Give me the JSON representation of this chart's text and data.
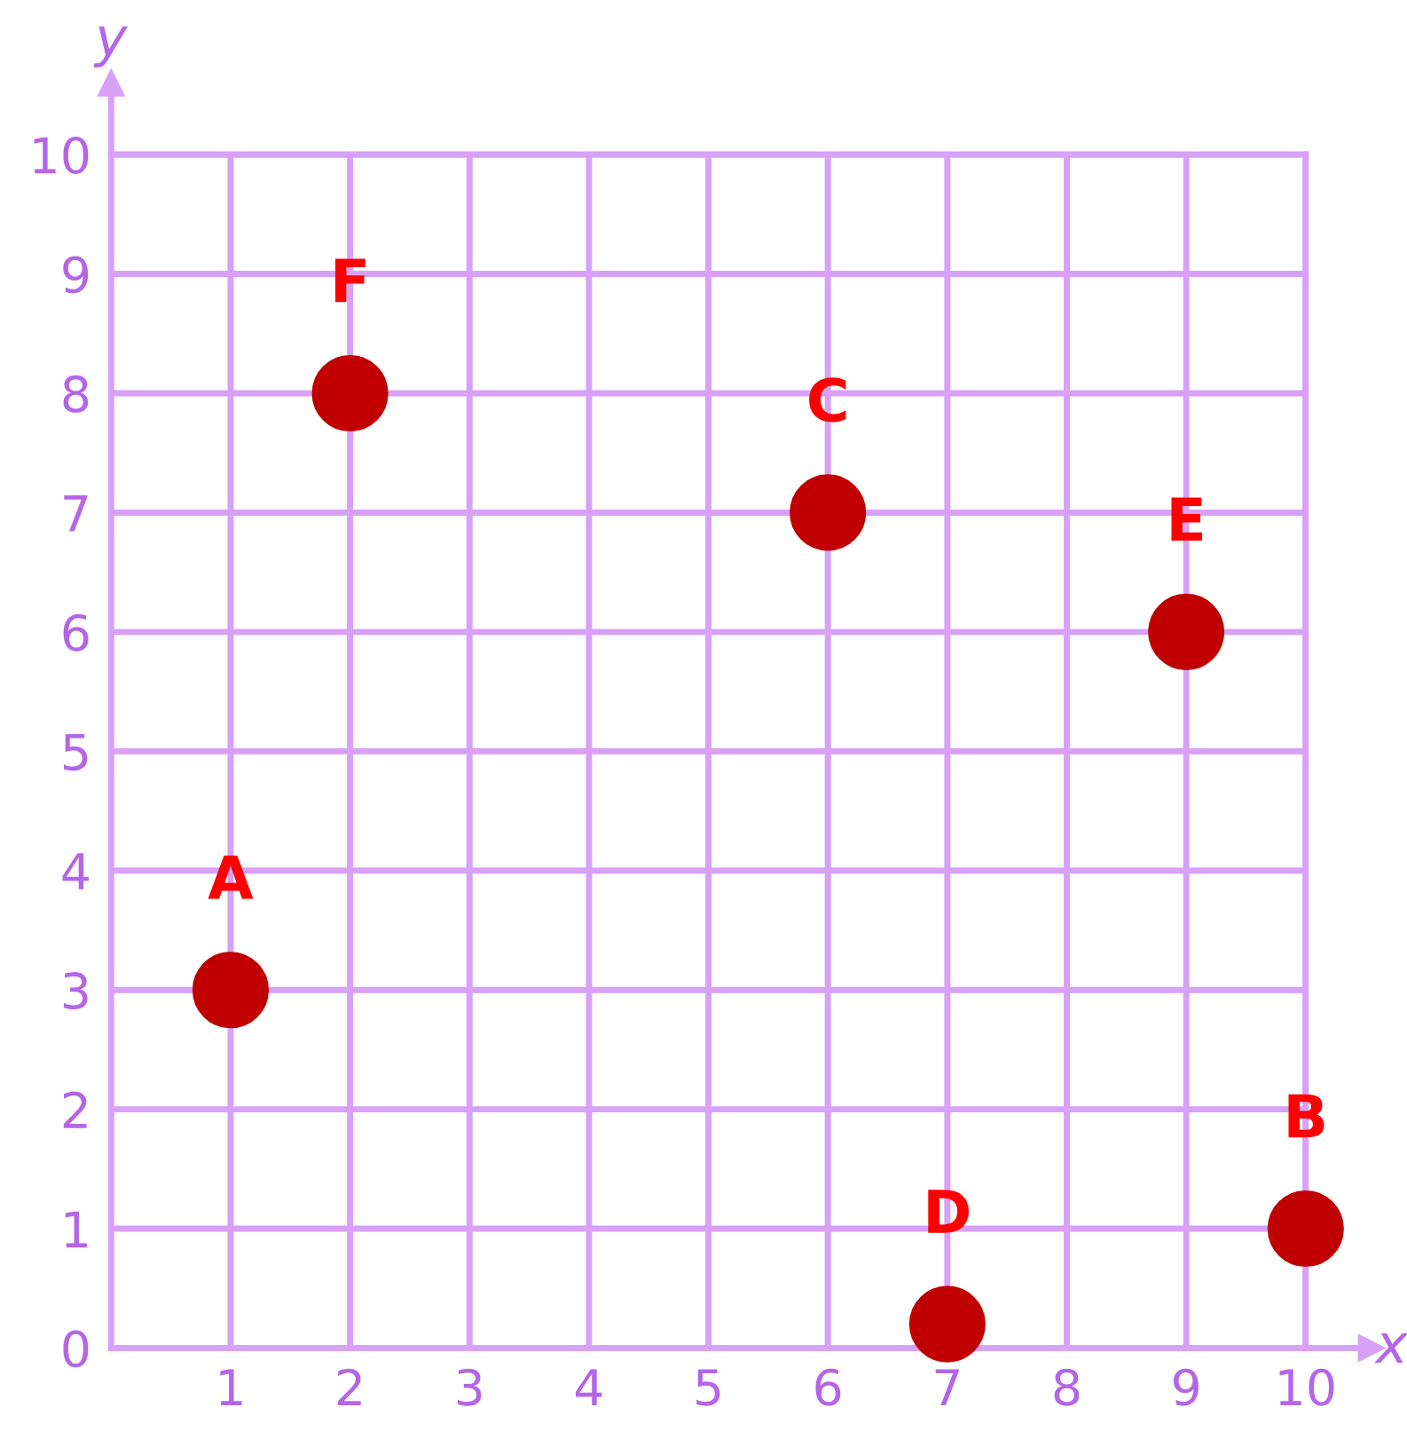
{
  "chart_data": {
    "type": "scatter",
    "xlabel": "x",
    "ylabel": "y",
    "series": [
      {
        "color": "#c00000",
        "x": [
          1,
          10,
          6,
          7,
          9,
          2
        ],
        "values": [
          3,
          1,
          7,
          0.2,
          6,
          8
        ]
      }
    ],
    "annotations": [
      {
        "text": "A",
        "x": 1,
        "y": 3
      },
      {
        "text": "B",
        "x": 10,
        "y": 1
      },
      {
        "text": "C",
        "x": 6,
        "y": 7
      },
      {
        "text": "D",
        "x": 7,
        "y": 0.2
      },
      {
        "text": "E",
        "x": 9,
        "y": 6
      },
      {
        "text": "F",
        "x": 2,
        "y": 8
      }
    ],
    "xlim": [
      0,
      10
    ],
    "ylim": [
      0,
      10
    ],
    "xticks": [
      1,
      2,
      3,
      4,
      5,
      6,
      7,
      8,
      9,
      10
    ],
    "yticks": [
      0,
      1,
      2,
      3,
      4,
      5,
      6,
      7,
      8,
      9,
      10
    ],
    "grid": true,
    "marker": "circle",
    "legend": false
  }
}
